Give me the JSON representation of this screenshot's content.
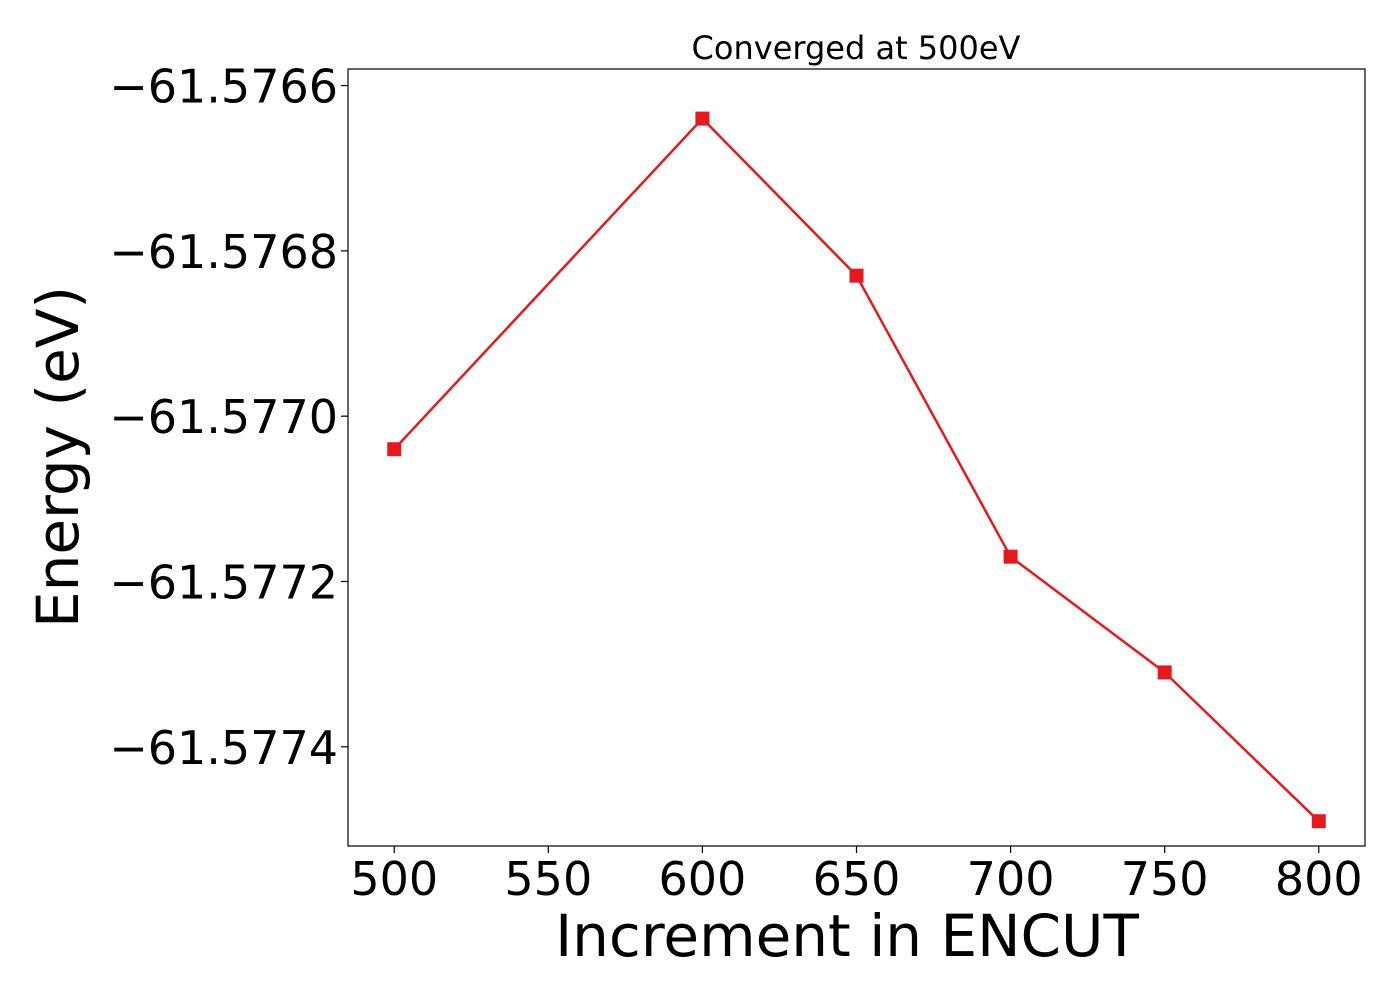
{
  "chart_data": {
    "type": "line",
    "title": "Converged at 500eV",
    "xlabel": "Increment in ENCUT",
    "ylabel": "Energy (eV)",
    "x": [
      500,
      600,
      650,
      700,
      750,
      800
    ],
    "series": [
      {
        "values": [
          -61.57704,
          -61.57664,
          -61.57683,
          -61.57717,
          -61.57731,
          -61.57749
        ],
        "color": "#e41a1c",
        "marker": "square"
      }
    ],
    "xticks": [
      500,
      550,
      600,
      650,
      700,
      750,
      800
    ],
    "xtick_labels": [
      "500",
      "550",
      "600",
      "650",
      "700",
      "750",
      "800"
    ],
    "yticks": [
      -61.5766,
      -61.5768,
      -61.577,
      -61.5772,
      -61.5774
    ],
    "ytick_labels": [
      "−61.5766",
      "−61.5768",
      "−61.5770",
      "−61.5772",
      "−61.5774"
    ],
    "xlim": [
      485,
      815
    ],
    "ylim": [
      -61.57752,
      -61.57658
    ],
    "grid": false,
    "legend": "none"
  }
}
